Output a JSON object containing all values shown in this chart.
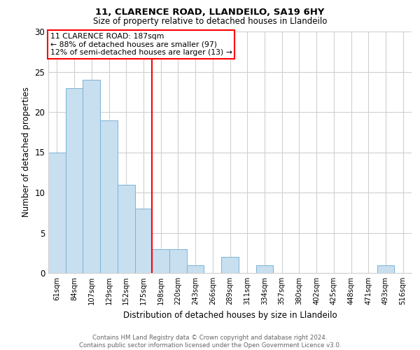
{
  "title1": "11, CLARENCE ROAD, LLANDEILO, SA19 6HY",
  "title2": "Size of property relative to detached houses in Llandeilo",
  "xlabel": "Distribution of detached houses by size in Llandeilo",
  "ylabel": "Number of detached properties",
  "categories": [
    "61sqm",
    "84sqm",
    "107sqm",
    "129sqm",
    "152sqm",
    "175sqm",
    "198sqm",
    "220sqm",
    "243sqm",
    "266sqm",
    "289sqm",
    "311sqm",
    "334sqm",
    "357sqm",
    "380sqm",
    "402sqm",
    "425sqm",
    "448sqm",
    "471sqm",
    "493sqm",
    "516sqm"
  ],
  "values": [
    15,
    23,
    24,
    19,
    11,
    8,
    3,
    3,
    1,
    0,
    2,
    0,
    1,
    0,
    0,
    0,
    0,
    0,
    0,
    1,
    0
  ],
  "bar_color": "#c8dff0",
  "bar_edgecolor": "#7ab4d4",
  "vline_x": 6.0,
  "vline_color": "red",
  "annotation_text": "11 CLARENCE ROAD: 187sqm\n← 88% of detached houses are smaller (97)\n12% of semi-detached houses are larger (13) →",
  "annotation_box_color": "white",
  "annotation_box_edgecolor": "red",
  "ylim": [
    0,
    30
  ],
  "yticks": [
    0,
    5,
    10,
    15,
    20,
    25,
    30
  ],
  "footer": "Contains HM Land Registry data © Crown copyright and database right 2024.\nContains public sector information licensed under the Open Government Licence v3.0.",
  "bg_color": "white",
  "grid_color": "#d0d0d0"
}
